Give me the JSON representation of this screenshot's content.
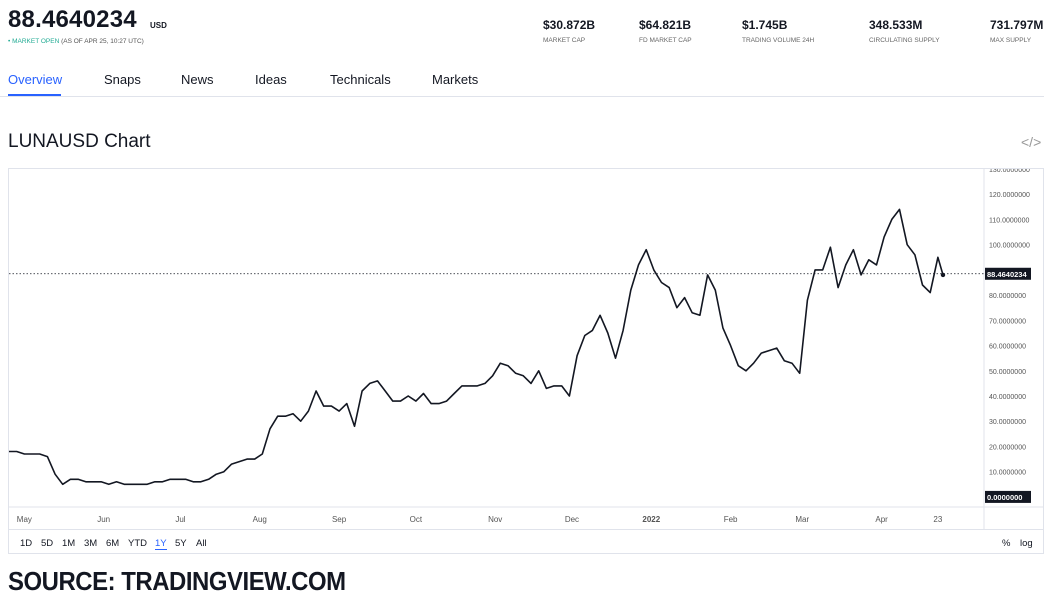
{
  "header": {
    "price": "88.4640234",
    "currency": "USD",
    "market_status_dot": "•",
    "market_status": "MARKET OPEN",
    "as_of": "(AS OF APR 25, 10:27 UTC)",
    "stats": [
      {
        "value": "$30.872B",
        "label": "MARKET CAP"
      },
      {
        "value": "$64.821B",
        "label": "FD MARKET CAP"
      },
      {
        "value": "$1.745B",
        "label": "TRADING VOLUME 24H"
      },
      {
        "value": "348.533M",
        "label": "CIRCULATING SUPPLY"
      },
      {
        "value": "731.797M",
        "label": "MAX SUPPLY"
      }
    ]
  },
  "tabs": [
    "Overview",
    "Snaps",
    "News",
    "Ideas",
    "Technicals",
    "Markets"
  ],
  "active_tab": "Overview",
  "chart_title": "LUNAUSD Chart",
  "embed_icon": "code-embed-icon",
  "embed_glyph": "</>",
  "colors": {
    "accent": "#2962ff",
    "market_open": "#22ab94",
    "line": "#131722"
  },
  "range_buttons": [
    "1D",
    "5D",
    "1M",
    "3M",
    "6M",
    "YTD",
    "1Y",
    "5Y",
    "All"
  ],
  "active_range": "1Y",
  "scale_toggles": [
    "%",
    "log"
  ],
  "source_caption": "SOURCE: TRADINGVIEW.COM",
  "chart_data": {
    "type": "line",
    "title": "LUNAUSD Chart",
    "ylim": [
      -4,
      130
    ],
    "y_ticks": [
      0,
      10,
      20,
      30,
      40,
      50,
      60,
      70,
      80,
      90,
      100,
      110,
      120,
      130
    ],
    "y_tick_labels": [
      "0.0000000",
      "10.0000000",
      "20.0000000",
      "30.0000000",
      "40.0000000",
      "50.0000000",
      "60.0000000",
      "70.0000000",
      "80.0000000",
      "90.0000000",
      "100.0000000",
      "110.0000000",
      "120.0000000",
      "130.0000000"
    ],
    "x_tick_labels": [
      "May",
      "Jun",
      "Jul",
      "Aug",
      "Sep",
      "Oct",
      "Nov",
      "Dec",
      "2022",
      "Feb",
      "Mar",
      "Apr",
      "23"
    ],
    "x_tick_dates": [
      "2021-05-01",
      "2021-06-01",
      "2021-07-01",
      "2021-08-01",
      "2021-09-01",
      "2021-10-01",
      "2021-11-01",
      "2021-12-01",
      "2022-01-01",
      "2022-02-01",
      "2022-03-01",
      "2022-04-01",
      "2022-04-23"
    ],
    "last_price": 88.4640234,
    "last_price_label": "88.4640234",
    "zero_label": "0.0000000",
    "grid": false,
    "series": [
      {
        "x": [
          "2021-04-25",
          "2021-04-28",
          "2021-05-01",
          "2021-05-04",
          "2021-05-07",
          "2021-05-10",
          "2021-05-13",
          "2021-05-16",
          "2021-05-19",
          "2021-05-22",
          "2021-05-25",
          "2021-05-28",
          "2021-05-31",
          "2021-06-03",
          "2021-06-06",
          "2021-06-09",
          "2021-06-12",
          "2021-06-15",
          "2021-06-18",
          "2021-06-21",
          "2021-06-24",
          "2021-06-27",
          "2021-06-30",
          "2021-07-03",
          "2021-07-06",
          "2021-07-09",
          "2021-07-12",
          "2021-07-15",
          "2021-07-18",
          "2021-07-21",
          "2021-07-24",
          "2021-07-27",
          "2021-07-30",
          "2021-08-02",
          "2021-08-05",
          "2021-08-08",
          "2021-08-11",
          "2021-08-14",
          "2021-08-17",
          "2021-08-20",
          "2021-08-23",
          "2021-08-26",
          "2021-08-29",
          "2021-09-01",
          "2021-09-04",
          "2021-09-07",
          "2021-09-10",
          "2021-09-13",
          "2021-09-16",
          "2021-09-19",
          "2021-09-22",
          "2021-09-25",
          "2021-09-28",
          "2021-10-01",
          "2021-10-04",
          "2021-10-07",
          "2021-10-10",
          "2021-10-13",
          "2021-10-16",
          "2021-10-19",
          "2021-10-22",
          "2021-10-25",
          "2021-10-28",
          "2021-10-31",
          "2021-11-03",
          "2021-11-06",
          "2021-11-09",
          "2021-11-12",
          "2021-11-15",
          "2021-11-18",
          "2021-11-21",
          "2021-11-24",
          "2021-11-27",
          "2021-11-30",
          "2021-12-03",
          "2021-12-06",
          "2021-12-09",
          "2021-12-12",
          "2021-12-15",
          "2021-12-18",
          "2021-12-21",
          "2021-12-24",
          "2021-12-27",
          "2021-12-30",
          "2022-01-02",
          "2022-01-05",
          "2022-01-08",
          "2022-01-11",
          "2022-01-14",
          "2022-01-17",
          "2022-01-20",
          "2022-01-23",
          "2022-01-26",
          "2022-01-29",
          "2022-02-01",
          "2022-02-04",
          "2022-02-07",
          "2022-02-10",
          "2022-02-13",
          "2022-02-16",
          "2022-02-19",
          "2022-02-22",
          "2022-02-25",
          "2022-02-28",
          "2022-03-03",
          "2022-03-06",
          "2022-03-09",
          "2022-03-12",
          "2022-03-15",
          "2022-03-18",
          "2022-03-21",
          "2022-03-24",
          "2022-03-27",
          "2022-03-30",
          "2022-04-02",
          "2022-04-05",
          "2022-04-08",
          "2022-04-11",
          "2022-04-14",
          "2022-04-17",
          "2022-04-20",
          "2022-04-23",
          "2022-04-25"
        ],
        "y": [
          18,
          18,
          17,
          17,
          17,
          16,
          9,
          5,
          7,
          7,
          6,
          6,
          6,
          5,
          6,
          5,
          5,
          5,
          5,
          6,
          6,
          7,
          7,
          7,
          6,
          6,
          7,
          9,
          10,
          13,
          14,
          15,
          15,
          17,
          27,
          32,
          32,
          33,
          30,
          34,
          42,
          36,
          36,
          34,
          37,
          28,
          42,
          45,
          46,
          42,
          38,
          38,
          40,
          38,
          41,
          37,
          37,
          38,
          41,
          44,
          44,
          44,
          45,
          48,
          53,
          52,
          49,
          48,
          45,
          50,
          43,
          44,
          44,
          40,
          56,
          64,
          66,
          72,
          65,
          55,
          66,
          82,
          92,
          98,
          90,
          85,
          83,
          75,
          79,
          73,
          72,
          88,
          82,
          67,
          60,
          52,
          50,
          53,
          57,
          58,
          59,
          54,
          53,
          49,
          78,
          90,
          90,
          99,
          83,
          92,
          98,
          88,
          94,
          92,
          103,
          110,
          114,
          100,
          96,
          84,
          81,
          95,
          88
        ]
      }
    ]
  }
}
